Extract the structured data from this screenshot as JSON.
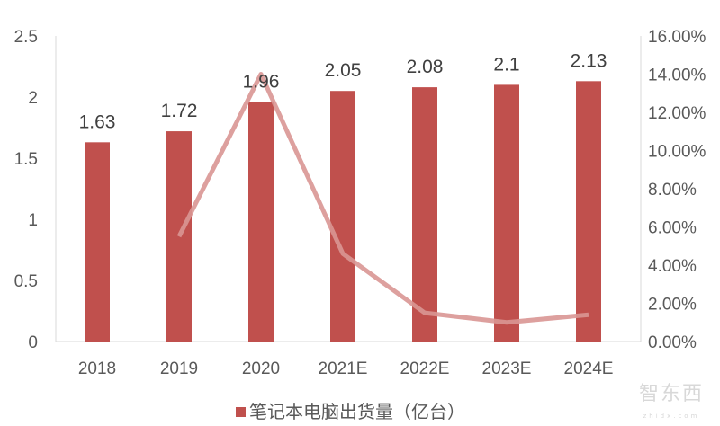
{
  "chart_data": {
    "type": "bar",
    "categories": [
      "2018",
      "2019",
      "2020",
      "2021E",
      "2022E",
      "2023E",
      "2024E"
    ],
    "series": [
      {
        "name": "笔记本电脑出货量（亿台）",
        "type": "bar",
        "axis": "left",
        "values": [
          1.63,
          1.72,
          1.96,
          2.05,
          2.08,
          2.1,
          2.13
        ],
        "data_labels": [
          "1.63",
          "1.72",
          "1.96",
          "2.05",
          "2.08",
          "2.1",
          "2.13"
        ],
        "color": "#c0504d"
      },
      {
        "type": "line",
        "axis": "right",
        "values": [
          null,
          5.5,
          14.0,
          4.6,
          1.5,
          1.0,
          1.4
        ],
        "unit": "%",
        "color": "#d99694"
      }
    ],
    "y_left": {
      "ylim": [
        0,
        2.5
      ],
      "ticks": [
        "0",
        "0.5",
        "1",
        "1.5",
        "2",
        "2.5"
      ]
    },
    "y_right": {
      "ylim": [
        0,
        16
      ],
      "ticks": [
        "0.00%",
        "2.00%",
        "4.00%",
        "6.00%",
        "8.00%",
        "10.00%",
        "12.00%",
        "14.00%",
        "16.00%"
      ]
    },
    "grid": false,
    "legend": {
      "position": "bottom",
      "entries": [
        "笔记本电脑出货量（亿台）"
      ]
    }
  },
  "watermark": {
    "text": "智东西",
    "sub": "zhidx.com"
  }
}
